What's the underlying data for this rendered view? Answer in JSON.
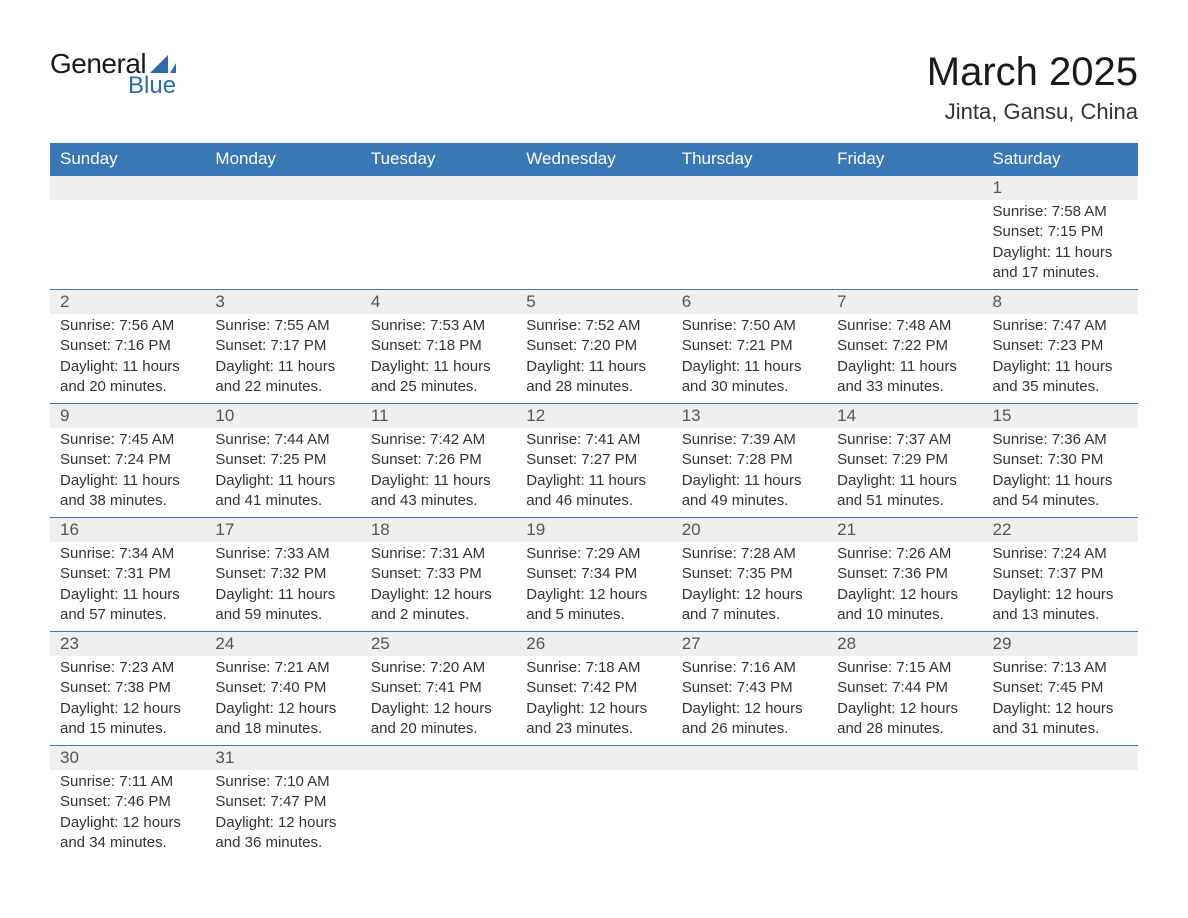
{
  "logo": {
    "word1": "General",
    "word2": "Blue",
    "text_color": "#1a1a1a",
    "accent_color": "#2e6bac"
  },
  "title": "March 2025",
  "location": "Jinta, Gansu, China",
  "colors": {
    "header_bg": "#3a77b6",
    "header_text": "#ffffff",
    "daynum_bg": "#efefef",
    "border": "#3a77b6",
    "body_text": "#333333",
    "page_bg": "#ffffff"
  },
  "typography": {
    "title_fontsize": 40,
    "location_fontsize": 22,
    "header_fontsize": 17,
    "daynum_fontsize": 17,
    "detail_fontsize": 15,
    "font_family": "Arial"
  },
  "weekdays": [
    "Sunday",
    "Monday",
    "Tuesday",
    "Wednesday",
    "Thursday",
    "Friday",
    "Saturday"
  ],
  "labels": {
    "sunrise": "Sunrise:",
    "sunset": "Sunset:",
    "daylight": "Daylight:"
  },
  "weeks": [
    [
      null,
      null,
      null,
      null,
      null,
      null,
      {
        "d": "1",
        "sr": "7:58 AM",
        "ss": "7:15 PM",
        "dl": "11 hours and 17 minutes."
      }
    ],
    [
      {
        "d": "2",
        "sr": "7:56 AM",
        "ss": "7:16 PM",
        "dl": "11 hours and 20 minutes."
      },
      {
        "d": "3",
        "sr": "7:55 AM",
        "ss": "7:17 PM",
        "dl": "11 hours and 22 minutes."
      },
      {
        "d": "4",
        "sr": "7:53 AM",
        "ss": "7:18 PM",
        "dl": "11 hours and 25 minutes."
      },
      {
        "d": "5",
        "sr": "7:52 AM",
        "ss": "7:20 PM",
        "dl": "11 hours and 28 minutes."
      },
      {
        "d": "6",
        "sr": "7:50 AM",
        "ss": "7:21 PM",
        "dl": "11 hours and 30 minutes."
      },
      {
        "d": "7",
        "sr": "7:48 AM",
        "ss": "7:22 PM",
        "dl": "11 hours and 33 minutes."
      },
      {
        "d": "8",
        "sr": "7:47 AM",
        "ss": "7:23 PM",
        "dl": "11 hours and 35 minutes."
      }
    ],
    [
      {
        "d": "9",
        "sr": "7:45 AM",
        "ss": "7:24 PM",
        "dl": "11 hours and 38 minutes."
      },
      {
        "d": "10",
        "sr": "7:44 AM",
        "ss": "7:25 PM",
        "dl": "11 hours and 41 minutes."
      },
      {
        "d": "11",
        "sr": "7:42 AM",
        "ss": "7:26 PM",
        "dl": "11 hours and 43 minutes."
      },
      {
        "d": "12",
        "sr": "7:41 AM",
        "ss": "7:27 PM",
        "dl": "11 hours and 46 minutes."
      },
      {
        "d": "13",
        "sr": "7:39 AM",
        "ss": "7:28 PM",
        "dl": "11 hours and 49 minutes."
      },
      {
        "d": "14",
        "sr": "7:37 AM",
        "ss": "7:29 PM",
        "dl": "11 hours and 51 minutes."
      },
      {
        "d": "15",
        "sr": "7:36 AM",
        "ss": "7:30 PM",
        "dl": "11 hours and 54 minutes."
      }
    ],
    [
      {
        "d": "16",
        "sr": "7:34 AM",
        "ss": "7:31 PM",
        "dl": "11 hours and 57 minutes."
      },
      {
        "d": "17",
        "sr": "7:33 AM",
        "ss": "7:32 PM",
        "dl": "11 hours and 59 minutes."
      },
      {
        "d": "18",
        "sr": "7:31 AM",
        "ss": "7:33 PM",
        "dl": "12 hours and 2 minutes."
      },
      {
        "d": "19",
        "sr": "7:29 AM",
        "ss": "7:34 PM",
        "dl": "12 hours and 5 minutes."
      },
      {
        "d": "20",
        "sr": "7:28 AM",
        "ss": "7:35 PM",
        "dl": "12 hours and 7 minutes."
      },
      {
        "d": "21",
        "sr": "7:26 AM",
        "ss": "7:36 PM",
        "dl": "12 hours and 10 minutes."
      },
      {
        "d": "22",
        "sr": "7:24 AM",
        "ss": "7:37 PM",
        "dl": "12 hours and 13 minutes."
      }
    ],
    [
      {
        "d": "23",
        "sr": "7:23 AM",
        "ss": "7:38 PM",
        "dl": "12 hours and 15 minutes."
      },
      {
        "d": "24",
        "sr": "7:21 AM",
        "ss": "7:40 PM",
        "dl": "12 hours and 18 minutes."
      },
      {
        "d": "25",
        "sr": "7:20 AM",
        "ss": "7:41 PM",
        "dl": "12 hours and 20 minutes."
      },
      {
        "d": "26",
        "sr": "7:18 AM",
        "ss": "7:42 PM",
        "dl": "12 hours and 23 minutes."
      },
      {
        "d": "27",
        "sr": "7:16 AM",
        "ss": "7:43 PM",
        "dl": "12 hours and 26 minutes."
      },
      {
        "d": "28",
        "sr": "7:15 AM",
        "ss": "7:44 PM",
        "dl": "12 hours and 28 minutes."
      },
      {
        "d": "29",
        "sr": "7:13 AM",
        "ss": "7:45 PM",
        "dl": "12 hours and 31 minutes."
      }
    ],
    [
      {
        "d": "30",
        "sr": "7:11 AM",
        "ss": "7:46 PM",
        "dl": "12 hours and 34 minutes."
      },
      {
        "d": "31",
        "sr": "7:10 AM",
        "ss": "7:47 PM",
        "dl": "12 hours and 36 minutes."
      },
      null,
      null,
      null,
      null,
      null
    ]
  ]
}
